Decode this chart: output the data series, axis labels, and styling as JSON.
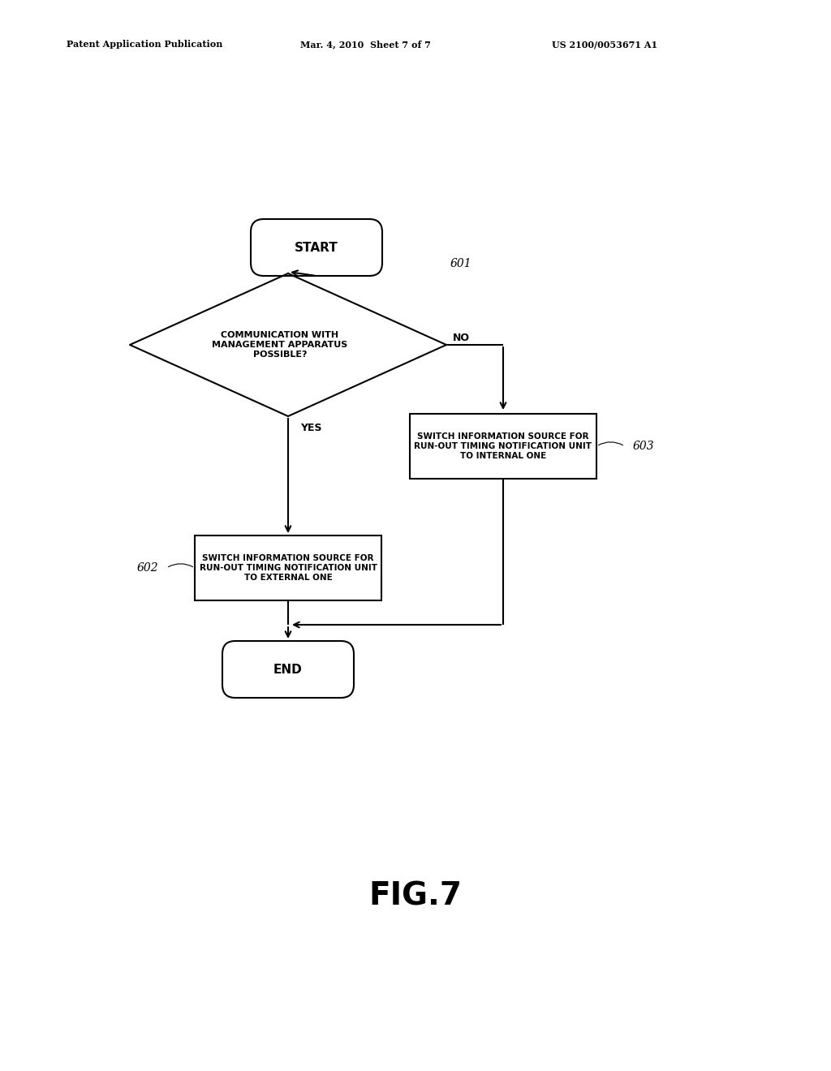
{
  "bg_color": "#ffffff",
  "text_color": "#000000",
  "header_left": "Patent Application Publication",
  "header_mid": "Mar. 4, 2010  Sheet 7 of 7",
  "header_right": "US 2100/0053671 A1",
  "fig_label": "FIG.7",
  "start_label": "START",
  "end_label": "END",
  "decision_label": "COMMUNICATION WITH\nMANAGEMENT APPARATUS\nPOSSIBLE?",
  "decision_ref": "601",
  "box1_label": "SWITCH INFORMATION SOURCE FOR\nRUN-OUT TIMING NOTIFICATION UNIT\nTO EXTERNAL ONE",
  "box1_ref": "602",
  "box2_label": "SWITCH INFORMATION SOURCE FOR\nRUN-OUT TIMING NOTIFICATION UNIT\nTO INTERNAL ONE",
  "box2_ref": "603",
  "yes_label": "YES",
  "no_label": "NO",
  "line_color": "#000000",
  "line_width": 1.5
}
